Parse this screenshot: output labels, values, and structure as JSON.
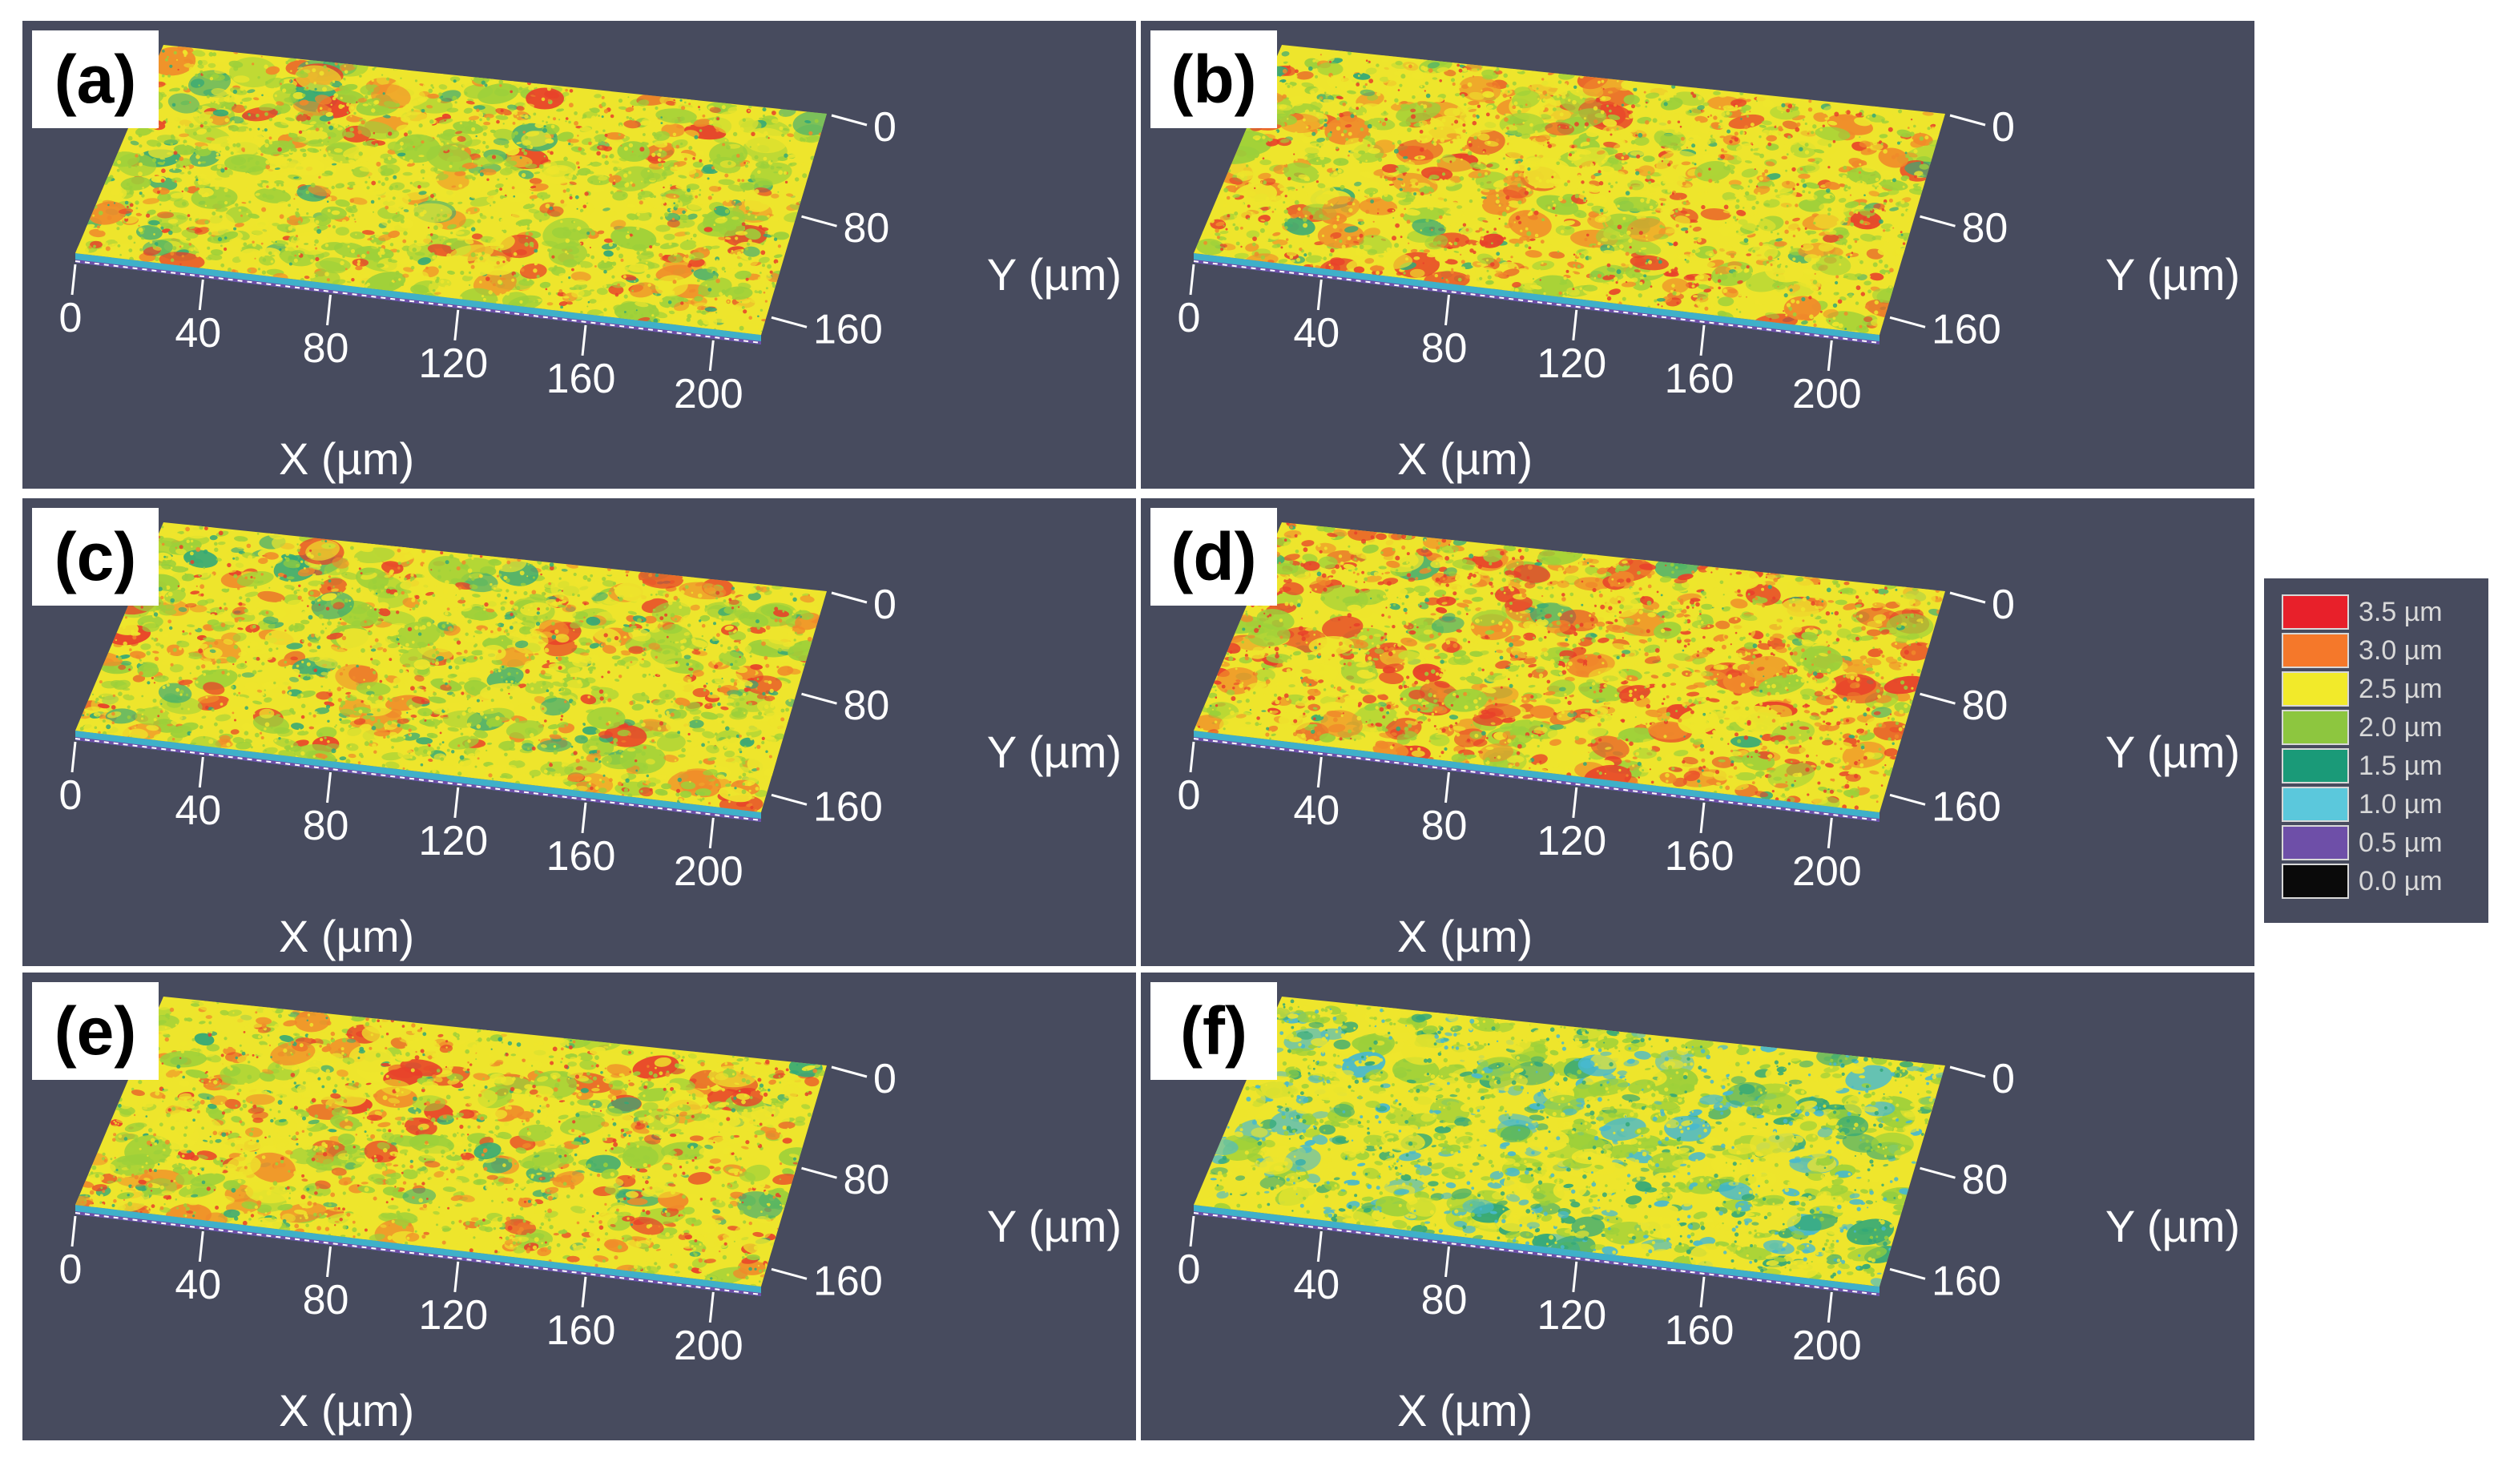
{
  "figure": {
    "background": "#474b5e"
  },
  "chart_data": [
    {
      "type": "heatmap",
      "panel_label": "(a)",
      "xlabel": "X (µm)",
      "ylabel": "Y (µm)",
      "x_ticks": [
        "0",
        "40",
        "80",
        "120",
        "160",
        "200"
      ],
      "y_ticks": [
        "0",
        "80",
        "160"
      ],
      "colorbar_unit": "µm",
      "mix": {
        "red": 0.06,
        "orange": 0.1,
        "yellow": 0.38,
        "green": 0.4,
        "teal": 0.06,
        "cyan": 0.0
      }
    },
    {
      "type": "heatmap",
      "panel_label": "(b)",
      "xlabel": "X (µm)",
      "ylabel": "Y (µm)",
      "x_ticks": [
        "0",
        "40",
        "80",
        "120",
        "160",
        "200"
      ],
      "y_ticks": [
        "0",
        "80",
        "160"
      ],
      "colorbar_unit": "µm",
      "mix": {
        "red": 0.14,
        "orange": 0.16,
        "yellow": 0.4,
        "green": 0.26,
        "teal": 0.04,
        "cyan": 0.0
      }
    },
    {
      "type": "heatmap",
      "panel_label": "(c)",
      "xlabel": "X (µm)",
      "ylabel": "Y (µm)",
      "x_ticks": [
        "0",
        "40",
        "80",
        "120",
        "160",
        "200"
      ],
      "y_ticks": [
        "0",
        "80",
        "160"
      ],
      "colorbar_unit": "µm",
      "mix": {
        "red": 0.08,
        "orange": 0.12,
        "yellow": 0.36,
        "green": 0.36,
        "teal": 0.08,
        "cyan": 0.0
      }
    },
    {
      "type": "heatmap",
      "panel_label": "(d)",
      "xlabel": "X (µm)",
      "ylabel": "Y (µm)",
      "x_ticks": [
        "0",
        "40",
        "80",
        "120",
        "160",
        "200"
      ],
      "y_ticks": [
        "0",
        "80",
        "160"
      ],
      "colorbar_unit": "µm",
      "mix": {
        "red": 0.22,
        "orange": 0.16,
        "yellow": 0.34,
        "green": 0.24,
        "teal": 0.04,
        "cyan": 0.0
      }
    },
    {
      "type": "heatmap",
      "panel_label": "(e)",
      "xlabel": "X (µm)",
      "ylabel": "Y (µm)",
      "x_ticks": [
        "0",
        "40",
        "80",
        "120",
        "160",
        "200"
      ],
      "y_ticks": [
        "0",
        "80",
        "160"
      ],
      "colorbar_unit": "µm",
      "mix": {
        "red": 0.12,
        "orange": 0.14,
        "yellow": 0.4,
        "green": 0.28,
        "teal": 0.06,
        "cyan": 0.0
      }
    },
    {
      "type": "heatmap",
      "panel_label": "(f)",
      "xlabel": "X (µm)",
      "ylabel": "Y (µm)",
      "x_ticks": [
        "0",
        "40",
        "80",
        "120",
        "160",
        "200"
      ],
      "y_ticks": [
        "0",
        "80",
        "160"
      ],
      "colorbar_unit": "µm",
      "mix": {
        "red": 0.0,
        "orange": 0.0,
        "yellow": 0.4,
        "green": 0.28,
        "teal": 0.16,
        "cyan": 0.16
      }
    }
  ],
  "legend": {
    "entries": [
      {
        "label": "3.5 µm",
        "value": 3.5,
        "color": "#e8202a"
      },
      {
        "label": "3.0 µm",
        "value": 3.0,
        "color": "#f5782a"
      },
      {
        "label": "2.5 µm",
        "value": 2.5,
        "color": "#f2ea2a"
      },
      {
        "label": "2.0 µm",
        "value": 2.0,
        "color": "#8dc63f"
      },
      {
        "label": "1.5 µm",
        "value": 1.5,
        "color": "#1a9a78"
      },
      {
        "label": "1.0 µm",
        "value": 1.0,
        "color": "#5bc8dc"
      },
      {
        "label": "0.5 µm",
        "value": 0.5,
        "color": "#6e4fa8"
      },
      {
        "label": "0.0 µm",
        "value": 0.0,
        "color": "#0a0a0a"
      }
    ]
  },
  "surface_colors": {
    "red": "#e8402a",
    "orange": "#f08a2a",
    "yellow": "#eee52c",
    "green": "#9cd03a",
    "teal": "#33a878",
    "cyan": "#47b9cf"
  }
}
